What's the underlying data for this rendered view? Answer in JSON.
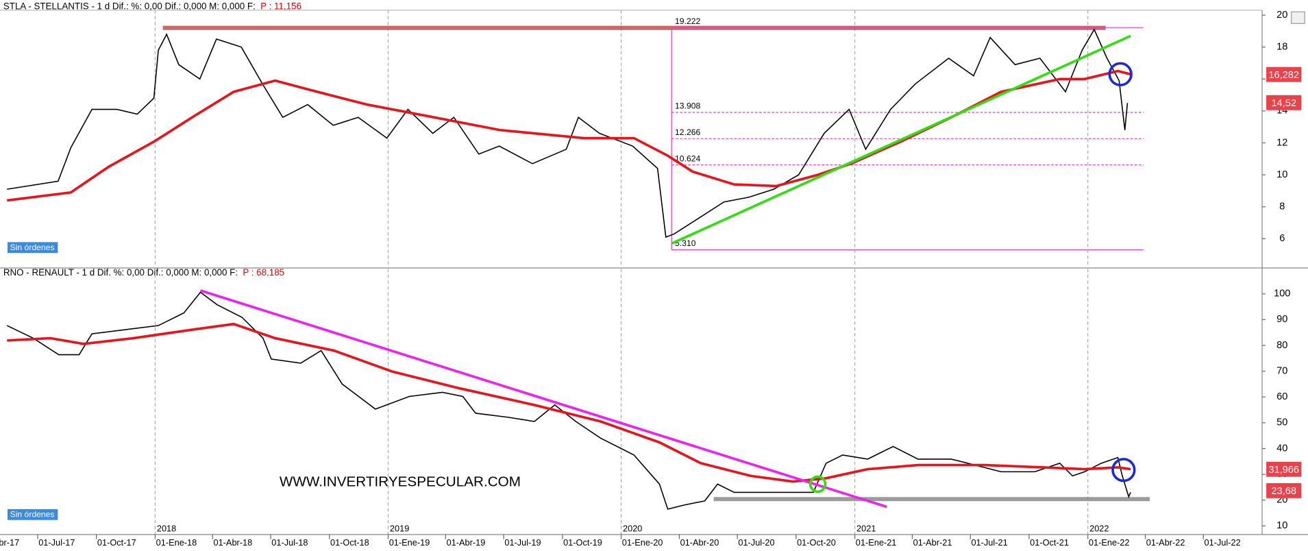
{
  "chart_data": [
    {
      "type": "line",
      "title": "STLA - STELLANTIS -  1 d  Dif.: %: 0,00  Dif.: 0,000  M: 0,000  F:",
      "price_label": "P : 11,156",
      "status": "Sin órdenes",
      "xlim": [
        "2017-05-03",
        "2022-10-01"
      ],
      "ylim": [
        4.22,
        20.31
      ],
      "yticks": [
        6,
        8,
        10,
        12,
        14,
        16,
        18,
        20
      ],
      "series": [
        {
          "color": "#000000",
          "x": [
            "2017-05-14",
            "2017-08-02",
            "2017-08-22",
            "2017-09-24",
            "2017-11-02",
            "2017-12-04",
            "2017-12-30",
            "2018-01-06",
            "2018-01-19",
            "2018-02-07",
            "2018-03-12",
            "2018-04-07",
            "2018-05-16",
            "2018-06-18",
            "2018-07-20",
            "2018-08-28",
            "2018-10-07",
            "2018-11-15",
            "2018-12-30",
            "2019-02-01",
            "2019-03-12",
            "2019-04-14",
            "2019-05-23",
            "2019-06-24",
            "2019-08-15",
            "2019-10-07",
            "2019-10-26",
            "2019-11-28",
            "2020-01-19",
            "2020-02-27",
            "2020-03-11",
            "2020-03-24",
            "2020-05-02",
            "2020-06-10",
            "2020-07-19",
            "2020-08-27",
            "2020-10-05",
            "2020-11-14",
            "2020-12-23",
            "2021-01-18",
            "2021-02-26",
            "2021-04-06",
            "2021-05-28",
            "2021-07-06",
            "2021-08-01",
            "2021-09-09",
            "2021-10-18",
            "2021-11-27",
            "2021-12-23",
            "2022-01-11",
            "2022-01-31",
            "2022-02-19",
            "2022-02-28",
            "2022-03-04"
          ],
          "values": [
            9.1,
            9.6,
            11.7,
            14.1,
            14.1,
            13.8,
            14.8,
            17.8,
            18.8,
            16.9,
            16.0,
            18.5,
            18.0,
            15.7,
            13.6,
            14.4,
            13.1,
            13.6,
            12.3,
            14.1,
            12.6,
            13.6,
            11.3,
            11.8,
            10.7,
            11.6,
            13.6,
            12.6,
            11.8,
            10.4,
            6.1,
            6.3,
            7.3,
            8.3,
            8.6,
            9.1,
            10.0,
            12.6,
            14.1,
            11.6,
            14.1,
            15.7,
            17.3,
            16.2,
            18.6,
            16.9,
            17.3,
            15.2,
            17.8,
            19.1,
            17.3,
            15.9,
            12.8,
            14.5
          ]
        },
        {
          "color": "#e8141c",
          "x": [
            "2017-05-14",
            "2017-08-22",
            "2017-10-20",
            "2017-12-31",
            "2018-02-28",
            "2018-05-04",
            "2018-07-08",
            "2018-09-12",
            "2018-11-29",
            "2019-03-14",
            "2019-06-26",
            "2019-11-04",
            "2020-01-21",
            "2020-03-14",
            "2020-04-22",
            "2020-06-26",
            "2020-08-31",
            "2020-11-04",
            "2020-12-26",
            "2021-03-15",
            "2021-06-01",
            "2021-08-18",
            "2021-11-18",
            "2021-12-27",
            "2022-02-17",
            "2022-03-09"
          ],
          "values": [
            8.4,
            8.9,
            10.5,
            12.1,
            13.6,
            15.2,
            15.9,
            15.2,
            14.4,
            13.6,
            12.8,
            12.3,
            12.3,
            11.2,
            10.2,
            9.4,
            9.3,
            10.0,
            10.7,
            12.1,
            13.6,
            15.2,
            16.0,
            16.0,
            16.5,
            16.3
          ]
        }
      ],
      "levels": [
        19.222,
        13.908,
        12.266,
        10.624,
        {
          "value": 5.31,
          "label": "5.310"
        }
      ],
      "levels_x": [
        "2020-03-20",
        "2022-03-29"
      ],
      "levels_color": "#e040c0",
      "trendlines": [
        {
          "style": "band",
          "color": "#c0504d",
          "x": [
            "2018-01-13",
            "2022-01-29"
          ],
          "values": [
            19.2,
            19.2
          ]
        },
        {
          "style": "line",
          "color": "#33dd11",
          "x": [
            "2020-03-20",
            "2022-03-09"
          ],
          "values": [
            5.7,
            18.7
          ]
        }
      ],
      "markers": [
        {
          "color": "#1a2ad8",
          "x": "2022-02-21",
          "value": 16.3
        }
      ],
      "price_tags": [
        {
          "value": 16.282,
          "label": "16,282"
        },
        {
          "value": 14.52,
          "label": "14,52"
        }
      ]
    },
    {
      "type": "line",
      "title": "RNO - RENAULT -  1 d  Dif. %: 0,00  Dif.: 0,000  M: 0,000  F:",
      "price_label": "P : 68,185",
      "status": "Sin órdenes",
      "watermark": "WWW.INVERTIRYESPECULAR.COM",
      "xlim": [
        "2017-05-03",
        "2022-10-01"
      ],
      "ylim": [
        6.8,
        109.7
      ],
      "yticks": [
        10,
        20,
        30,
        40,
        50,
        60,
        70,
        80,
        90,
        100
      ],
      "xticks": [
        {
          "value": "2017-04-01",
          "label": "01-Abr-17"
        },
        {
          "value": "2017-07-01",
          "label": "01-Jul-17"
        },
        {
          "value": "2017-10-01",
          "label": "01-Oct-17"
        },
        {
          "value": "2018-01-01",
          "label": "01-Ene-18"
        },
        {
          "value": "2018-04-01",
          "label": "01-Abr-18"
        },
        {
          "value": "2018-07-01",
          "label": "01-Jul-18"
        },
        {
          "value": "2018-10-01",
          "label": "01-Oct-18"
        },
        {
          "value": "2019-01-01",
          "label": "01-Ene-19"
        },
        {
          "value": "2019-04-01",
          "label": "01-Abr-19"
        },
        {
          "value": "2019-07-01",
          "label": "01-Jul-19"
        },
        {
          "value": "2019-10-01",
          "label": "01-Oct-19"
        },
        {
          "value": "2020-01-01",
          "label": "01-Ene-20"
        },
        {
          "value": "2020-04-01",
          "label": "01-Abr-20"
        },
        {
          "value": "2020-07-01",
          "label": "01-Jul-20"
        },
        {
          "value": "2020-10-01",
          "label": "01-Oct-20"
        },
        {
          "value": "2021-01-01",
          "label": "01-Ene-21"
        },
        {
          "value": "2021-04-01",
          "label": "01-Abr-21"
        },
        {
          "value": "2021-07-01",
          "label": "01-Jul-21"
        },
        {
          "value": "2021-10-01",
          "label": "01-Oct-21"
        },
        {
          "value": "2022-01-01",
          "label": "01-Ene-22"
        },
        {
          "value": "2022-04-01",
          "label": "01-Abr-22"
        },
        {
          "value": "2022-07-01",
          "label": "01-Jul-22"
        }
      ],
      "year_ticks": [
        {
          "value": "2018-01-01",
          "label": "2018"
        },
        {
          "value": "2019-01-01",
          "label": "2019"
        },
        {
          "value": "2020-01-01",
          "label": "2020"
        },
        {
          "value": "2021-01-01",
          "label": "2021"
        },
        {
          "value": "2022-01-01",
          "label": "2022"
        }
      ],
      "series": [
        {
          "color": "#000000",
          "x": [
            "2017-05-14",
            "2017-06-24",
            "2017-08-03",
            "2017-09-04",
            "2017-09-24",
            "2017-11-15",
            "2018-01-06",
            "2018-02-15",
            "2018-03-13",
            "2018-04-08",
            "2018-05-17",
            "2018-06-19",
            "2018-07-02",
            "2018-08-17",
            "2018-09-18",
            "2018-10-21",
            "2018-12-12",
            "2019-02-03",
            "2019-03-27",
            "2019-04-28",
            "2019-05-18",
            "2019-07-09",
            "2019-08-18",
            "2019-09-19",
            "2019-10-22",
            "2019-11-30",
            "2020-01-21",
            "2020-03-01",
            "2020-03-14",
            "2020-04-09",
            "2020-05-11",
            "2020-05-31",
            "2020-06-26",
            "2020-08-17",
            "2020-09-26",
            "2020-10-28",
            "2020-11-17",
            "2020-12-13",
            "2021-01-21",
            "2021-03-02",
            "2021-04-10",
            "2021-06-01",
            "2021-06-27",
            "2021-08-18",
            "2021-10-10",
            "2021-11-18",
            "2021-12-08",
            "2021-12-27",
            "2022-01-22",
            "2022-02-17",
            "2022-02-24",
            "2022-03-06",
            "2022-03-09"
          ],
          "values": [
            87.7,
            82.8,
            76.4,
            76.4,
            84.5,
            86.1,
            87.7,
            92.6,
            100.6,
            95.8,
            90.9,
            82.8,
            74.7,
            73.1,
            78.0,
            65.0,
            55.3,
            60.2,
            61.8,
            60.2,
            53.7,
            52.1,
            50.5,
            56.9,
            50.5,
            44.0,
            37.5,
            26.2,
            16.5,
            18.1,
            19.7,
            26.2,
            23.0,
            23.0,
            23.0,
            23.0,
            34.3,
            37.5,
            35.9,
            40.8,
            35.9,
            35.9,
            34.3,
            31.0,
            31.0,
            34.3,
            29.4,
            31.0,
            34.3,
            36.5,
            29.4,
            21.3,
            23.0
          ]
        },
        {
          "color": "#e8141c",
          "x": [
            "2017-05-14",
            "2017-07-21",
            "2017-09-11",
            "2017-11-28",
            "2018-02-28",
            "2018-05-04",
            "2018-07-08",
            "2018-10-08",
            "2019-01-07",
            "2019-04-22",
            "2019-08-18",
            "2019-11-30",
            "2020-03-01",
            "2020-05-05",
            "2020-07-22",
            "2020-09-26",
            "2020-11-17",
            "2021-01-21",
            "2021-04-10",
            "2021-07-23",
            "2021-10-23",
            "2021-12-27",
            "2022-02-17",
            "2022-03-09"
          ],
          "values": [
            81.9,
            82.8,
            80.6,
            82.8,
            86.1,
            88.3,
            82.8,
            78.0,
            69.9,
            63.4,
            56.9,
            50.5,
            42.4,
            34.3,
            29.4,
            27.2,
            28.5,
            32.0,
            33.6,
            33.6,
            32.7,
            32.0,
            32.7,
            32.0
          ]
        }
      ],
      "trendlines": [
        {
          "style": "line",
          "color": "#ee22ee",
          "x": [
            "2018-03-13",
            "2021-02-20"
          ],
          "values": [
            101.3,
            17.4
          ]
        },
        {
          "style": "band",
          "color": "#8a8a8a",
          "x": [
            "2020-05-25",
            "2022-04-08"
          ],
          "values": [
            20.4,
            20.4
          ]
        }
      ],
      "markers": [
        {
          "color": "#33dd11",
          "x": "2020-11-04",
          "value": 26.2
        },
        {
          "color": "#1a2ad8",
          "x": "2022-02-26",
          "value": 31.7
        }
      ],
      "price_tags": [
        {
          "value": 31.966,
          "label": "31,966"
        },
        {
          "value": 23.68,
          "label": "23,68"
        }
      ]
    }
  ]
}
